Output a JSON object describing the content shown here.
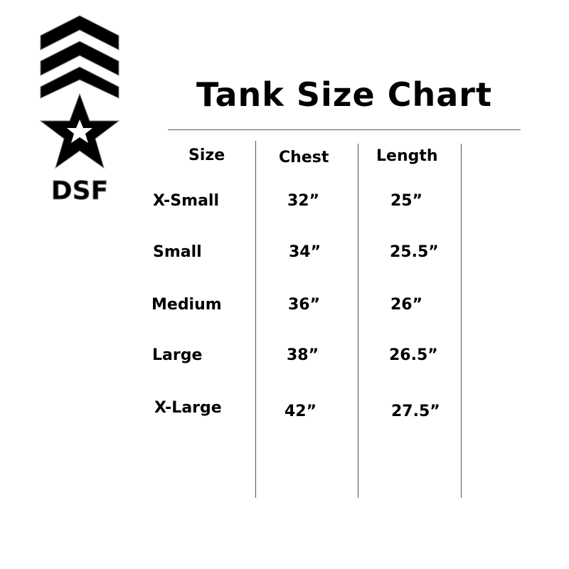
{
  "logo": {
    "text": "DSF",
    "icon": "chevrons-star-logo"
  },
  "title": "Tank Size Chart",
  "table": {
    "headers": [
      "Size",
      "Chest",
      "Length"
    ],
    "rows": [
      {
        "size": "X-Small",
        "chest": "32”",
        "length": "25”"
      },
      {
        "size": "Small",
        "chest": "34”",
        "length": "25.5”"
      },
      {
        "size": "Medium",
        "chest": "36”",
        "length": "26”"
      },
      {
        "size": "Large",
        "chest": "38”",
        "length": "26.5”"
      },
      {
        "size": "X-Large",
        "chest": "42”",
        "length": "27.5”"
      }
    ]
  }
}
